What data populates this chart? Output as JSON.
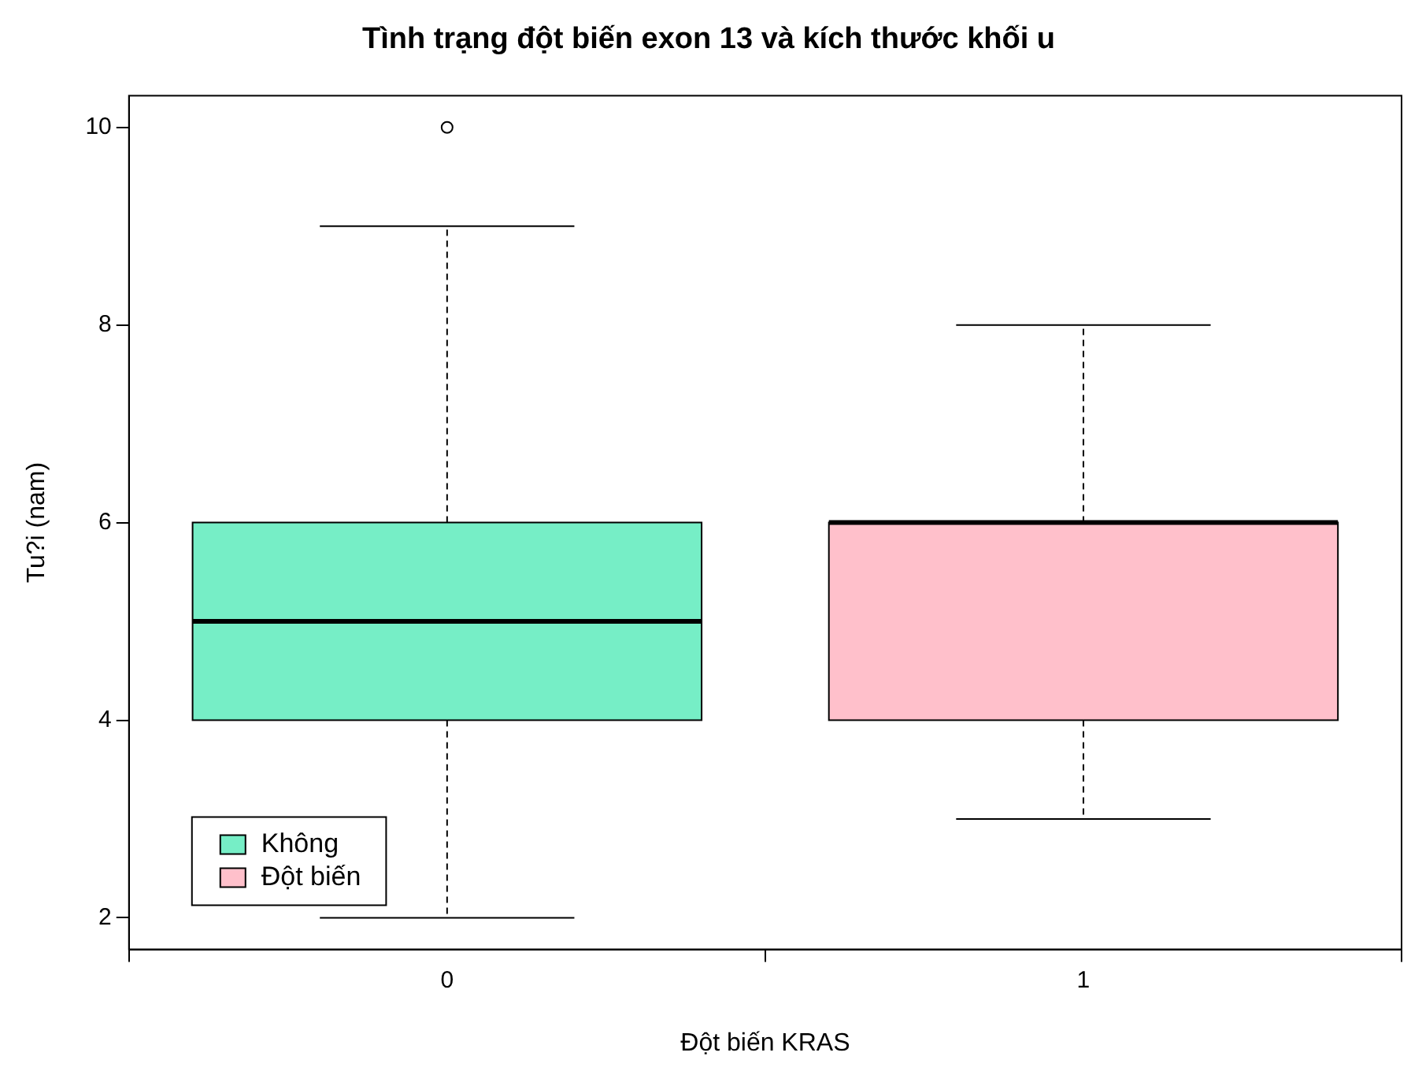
{
  "chart_data": {
    "type": "box",
    "title": "Tình trạng đột biến exon 13 và kích thước khối u",
    "xlabel": "Đột biến KRAS",
    "ylabel": "Tu?i (nam)",
    "categories": [
      "0",
      "1"
    ],
    "series": [
      {
        "name": "Không",
        "color": "#76eec6",
        "boxes": [
          {
            "low": 2,
            "q1": 4,
            "median": 5,
            "q3": 6,
            "high": 9,
            "outliers": [
              10
            ]
          },
          null
        ]
      },
      {
        "name": "Đột biến",
        "color": "#ffc0cb",
        "boxes": [
          null,
          {
            "low": 3,
            "q1": 4,
            "median": 6,
            "q3": 6,
            "high": 8
          }
        ]
      }
    ],
    "ylim": [
      1.68,
      10.32
    ],
    "yticks": [
      2,
      4,
      6,
      8,
      10
    ],
    "legend": "bottom left"
  }
}
